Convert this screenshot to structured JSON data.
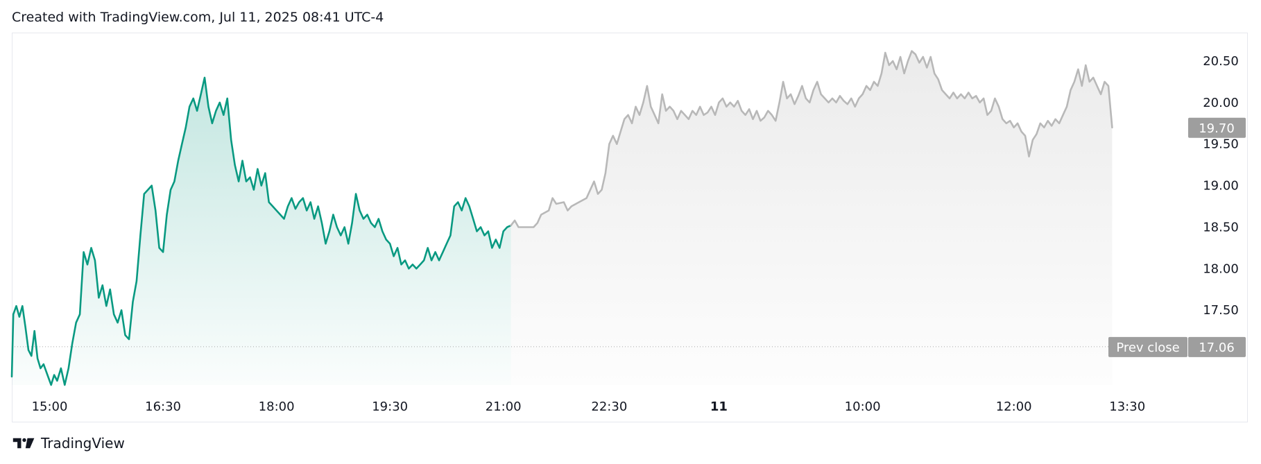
{
  "header": {
    "text": "Created with TradingView.com, Jul 11, 2025 08:41 UTC-4"
  },
  "footer": {
    "brand": "TradingView",
    "logo_icon": "tradingview-logo-icon"
  },
  "colors": {
    "session_line": "#089981",
    "extended_line": "#b8b8b8",
    "session_fill": "#089981",
    "extended_fill": "#c8c8c8",
    "label_bg": "#9e9e9e",
    "label_text": "#ffffff"
  },
  "chart_data": {
    "type": "area",
    "x_ticks": [
      {
        "label": "15:00",
        "t": 0.5,
        "bold": false
      },
      {
        "label": "16:30",
        "t": 2.0,
        "bold": false
      },
      {
        "label": "18:00",
        "t": 3.5,
        "bold": false
      },
      {
        "label": "19:30",
        "t": 5.0,
        "bold": false
      },
      {
        "label": "21:00",
        "t": 6.5,
        "bold": false
      },
      {
        "label": "22:30",
        "t": 7.9,
        "bold": false
      },
      {
        "label": "11",
        "t": 9.35,
        "bold": true
      },
      {
        "label": "10:00",
        "t": 11.25,
        "bold": false
      },
      {
        "label": "12:00",
        "t": 13.25,
        "bold": false
      },
      {
        "label": "13:30",
        "t": 14.75,
        "bold": false
      }
    ],
    "y_ticks": [
      "20.50",
      "20.00",
      "19.50",
      "19.00",
      "18.50",
      "18.00",
      "17.50"
    ],
    "ylim": [
      16.6,
      20.65
    ],
    "xlim": [
      0,
      15.5
    ],
    "grid": false,
    "prev_close": {
      "label": "Prev close",
      "value": 17.06,
      "value_label": "17.06"
    },
    "last_price": {
      "value": 19.7,
      "value_label": "19.70"
    },
    "series": [
      {
        "segment": "regular",
        "points": [
          [
            0.0,
            16.7
          ],
          [
            0.02,
            17.45
          ],
          [
            0.06,
            17.55
          ],
          [
            0.1,
            17.42
          ],
          [
            0.14,
            17.55
          ],
          [
            0.18,
            17.3
          ],
          [
            0.22,
            17.02
          ],
          [
            0.26,
            16.95
          ],
          [
            0.3,
            17.25
          ],
          [
            0.34,
            16.92
          ],
          [
            0.38,
            16.8
          ],
          [
            0.42,
            16.85
          ],
          [
            0.48,
            16.7
          ],
          [
            0.52,
            16.6
          ],
          [
            0.56,
            16.72
          ],
          [
            0.6,
            16.65
          ],
          [
            0.65,
            16.8
          ],
          [
            0.7,
            16.6
          ],
          [
            0.75,
            16.8
          ],
          [
            0.8,
            17.1
          ],
          [
            0.85,
            17.35
          ],
          [
            0.9,
            17.45
          ],
          [
            0.95,
            18.2
          ],
          [
            1.0,
            18.05
          ],
          [
            1.05,
            18.25
          ],
          [
            1.1,
            18.1
          ],
          [
            1.15,
            17.65
          ],
          [
            1.2,
            17.8
          ],
          [
            1.25,
            17.55
          ],
          [
            1.3,
            17.75
          ],
          [
            1.35,
            17.45
          ],
          [
            1.4,
            17.35
          ],
          [
            1.45,
            17.5
          ],
          [
            1.5,
            17.2
          ],
          [
            1.55,
            17.15
          ],
          [
            1.6,
            17.6
          ],
          [
            1.65,
            17.85
          ],
          [
            1.7,
            18.4
          ],
          [
            1.75,
            18.9
          ],
          [
            1.8,
            18.95
          ],
          [
            1.85,
            19.0
          ],
          [
            1.9,
            18.7
          ],
          [
            1.95,
            18.25
          ],
          [
            2.0,
            18.2
          ],
          [
            2.05,
            18.65
          ],
          [
            2.1,
            18.95
          ],
          [
            2.15,
            19.05
          ],
          [
            2.2,
            19.3
          ],
          [
            2.25,
            19.5
          ],
          [
            2.3,
            19.7
          ],
          [
            2.35,
            19.95
          ],
          [
            2.4,
            20.05
          ],
          [
            2.45,
            19.9
          ],
          [
            2.5,
            20.1
          ],
          [
            2.55,
            20.3
          ],
          [
            2.6,
            19.95
          ],
          [
            2.65,
            19.75
          ],
          [
            2.7,
            19.9
          ],
          [
            2.75,
            20.0
          ],
          [
            2.8,
            19.85
          ],
          [
            2.85,
            20.05
          ],
          [
            2.9,
            19.55
          ],
          [
            2.95,
            19.25
          ],
          [
            3.0,
            19.05
          ],
          [
            3.05,
            19.3
          ],
          [
            3.1,
            19.05
          ],
          [
            3.15,
            19.1
          ],
          [
            3.2,
            18.95
          ],
          [
            3.25,
            19.2
          ],
          [
            3.3,
            19.0
          ],
          [
            3.35,
            19.15
          ],
          [
            3.4,
            18.8
          ],
          [
            3.45,
            18.75
          ],
          [
            3.5,
            18.7
          ],
          [
            3.55,
            18.65
          ],
          [
            3.6,
            18.6
          ],
          [
            3.65,
            18.75
          ],
          [
            3.7,
            18.85
          ],
          [
            3.75,
            18.72
          ],
          [
            3.8,
            18.8
          ],
          [
            3.85,
            18.85
          ],
          [
            3.9,
            18.7
          ],
          [
            3.95,
            18.8
          ],
          [
            4.0,
            18.6
          ],
          [
            4.05,
            18.75
          ],
          [
            4.1,
            18.55
          ],
          [
            4.15,
            18.3
          ],
          [
            4.2,
            18.45
          ],
          [
            4.25,
            18.65
          ],
          [
            4.3,
            18.5
          ],
          [
            4.35,
            18.4
          ],
          [
            4.4,
            18.5
          ],
          [
            4.45,
            18.3
          ],
          [
            4.5,
            18.55
          ],
          [
            4.55,
            18.9
          ],
          [
            4.6,
            18.7
          ],
          [
            4.65,
            18.6
          ],
          [
            4.7,
            18.65
          ],
          [
            4.75,
            18.55
          ],
          [
            4.8,
            18.5
          ],
          [
            4.85,
            18.6
          ],
          [
            4.9,
            18.45
          ],
          [
            4.95,
            18.35
          ],
          [
            5.0,
            18.3
          ],
          [
            5.05,
            18.15
          ],
          [
            5.1,
            18.25
          ],
          [
            5.15,
            18.05
          ],
          [
            5.2,
            18.1
          ],
          [
            5.25,
            18.0
          ],
          [
            5.3,
            18.05
          ],
          [
            5.35,
            18.0
          ],
          [
            5.4,
            18.05
          ],
          [
            5.45,
            18.1
          ],
          [
            5.5,
            18.25
          ],
          [
            5.55,
            18.1
          ],
          [
            5.6,
            18.2
          ],
          [
            5.65,
            18.1
          ],
          [
            5.7,
            18.2
          ],
          [
            5.75,
            18.3
          ],
          [
            5.8,
            18.4
          ],
          [
            5.85,
            18.75
          ],
          [
            5.9,
            18.8
          ],
          [
            5.95,
            18.7
          ],
          [
            6.0,
            18.85
          ],
          [
            6.05,
            18.75
          ],
          [
            6.1,
            18.6
          ],
          [
            6.15,
            18.45
          ],
          [
            6.2,
            18.5
          ],
          [
            6.25,
            18.4
          ],
          [
            6.3,
            18.45
          ],
          [
            6.35,
            18.25
          ],
          [
            6.4,
            18.35
          ],
          [
            6.45,
            18.25
          ],
          [
            6.5,
            18.45
          ],
          [
            6.55,
            18.5
          ],
          [
            6.6,
            18.52
          ]
        ]
      },
      {
        "segment": "extended",
        "points": [
          [
            6.6,
            18.52
          ],
          [
            6.65,
            18.58
          ],
          [
            6.7,
            18.5
          ],
          [
            6.8,
            18.5
          ],
          [
            6.9,
            18.5
          ],
          [
            6.95,
            18.55
          ],
          [
            7.0,
            18.65
          ],
          [
            7.1,
            18.7
          ],
          [
            7.15,
            18.85
          ],
          [
            7.2,
            18.78
          ],
          [
            7.3,
            18.8
          ],
          [
            7.35,
            18.7
          ],
          [
            7.4,
            18.75
          ],
          [
            7.5,
            18.8
          ],
          [
            7.6,
            18.85
          ],
          [
            7.7,
            19.05
          ],
          [
            7.75,
            18.9
          ],
          [
            7.8,
            18.95
          ],
          [
            7.85,
            19.15
          ],
          [
            7.9,
            19.5
          ],
          [
            7.95,
            19.6
          ],
          [
            8.0,
            19.5
          ],
          [
            8.05,
            19.65
          ],
          [
            8.1,
            19.8
          ],
          [
            8.15,
            19.85
          ],
          [
            8.2,
            19.75
          ],
          [
            8.25,
            19.95
          ],
          [
            8.3,
            19.85
          ],
          [
            8.35,
            20.0
          ],
          [
            8.4,
            20.2
          ],
          [
            8.45,
            19.95
          ],
          [
            8.5,
            19.85
          ],
          [
            8.55,
            19.75
          ],
          [
            8.6,
            20.1
          ],
          [
            8.65,
            19.9
          ],
          [
            8.7,
            19.95
          ],
          [
            8.75,
            19.9
          ],
          [
            8.8,
            19.8
          ],
          [
            8.85,
            19.9
          ],
          [
            8.9,
            19.85
          ],
          [
            8.95,
            19.8
          ],
          [
            9.0,
            19.9
          ],
          [
            9.05,
            19.85
          ],
          [
            9.1,
            19.95
          ],
          [
            9.15,
            19.85
          ],
          [
            9.2,
            19.88
          ],
          [
            9.25,
            19.95
          ],
          [
            9.3,
            19.85
          ],
          [
            9.35,
            20.0
          ],
          [
            9.4,
            20.05
          ],
          [
            9.45,
            19.95
          ],
          [
            9.5,
            20.0
          ],
          [
            9.55,
            19.95
          ],
          [
            9.6,
            20.02
          ],
          [
            9.65,
            19.9
          ],
          [
            9.7,
            19.85
          ],
          [
            9.75,
            19.92
          ],
          [
            9.8,
            19.8
          ],
          [
            9.85,
            19.9
          ],
          [
            9.9,
            19.78
          ],
          [
            9.95,
            19.82
          ],
          [
            10.0,
            19.9
          ],
          [
            10.05,
            19.85
          ],
          [
            10.1,
            19.78
          ],
          [
            10.15,
            20.0
          ],
          [
            10.2,
            20.25
          ],
          [
            10.25,
            20.05
          ],
          [
            10.3,
            20.1
          ],
          [
            10.35,
            19.98
          ],
          [
            10.4,
            20.08
          ],
          [
            10.45,
            20.2
          ],
          [
            10.5,
            20.05
          ],
          [
            10.55,
            20.0
          ],
          [
            10.6,
            20.15
          ],
          [
            10.65,
            20.25
          ],
          [
            10.7,
            20.1
          ],
          [
            10.75,
            20.05
          ],
          [
            10.8,
            20.0
          ],
          [
            10.85,
            20.05
          ],
          [
            10.9,
            20.0
          ],
          [
            10.95,
            20.08
          ],
          [
            11.0,
            20.02
          ],
          [
            11.05,
            19.98
          ],
          [
            11.1,
            20.05
          ],
          [
            11.15,
            19.95
          ],
          [
            11.2,
            20.05
          ],
          [
            11.25,
            20.1
          ],
          [
            11.3,
            20.2
          ],
          [
            11.35,
            20.15
          ],
          [
            11.4,
            20.25
          ],
          [
            11.45,
            20.2
          ],
          [
            11.5,
            20.35
          ],
          [
            11.55,
            20.6
          ],
          [
            11.6,
            20.45
          ],
          [
            11.65,
            20.5
          ],
          [
            11.7,
            20.4
          ],
          [
            11.75,
            20.55
          ],
          [
            11.8,
            20.35
          ],
          [
            11.85,
            20.5
          ],
          [
            11.9,
            20.62
          ],
          [
            11.95,
            20.58
          ],
          [
            12.0,
            20.48
          ],
          [
            12.05,
            20.55
          ],
          [
            12.1,
            20.42
          ],
          [
            12.15,
            20.55
          ],
          [
            12.2,
            20.35
          ],
          [
            12.25,
            20.28
          ],
          [
            12.3,
            20.15
          ],
          [
            12.35,
            20.1
          ],
          [
            12.4,
            20.05
          ],
          [
            12.45,
            20.12
          ],
          [
            12.5,
            20.05
          ],
          [
            12.55,
            20.1
          ],
          [
            12.6,
            20.05
          ],
          [
            12.65,
            20.12
          ],
          [
            12.7,
            20.05
          ],
          [
            12.75,
            20.08
          ],
          [
            12.8,
            20.0
          ],
          [
            12.85,
            20.05
          ],
          [
            12.9,
            19.85
          ],
          [
            12.95,
            19.9
          ],
          [
            13.0,
            20.05
          ],
          [
            13.05,
            19.95
          ],
          [
            13.1,
            19.8
          ],
          [
            13.15,
            19.75
          ],
          [
            13.2,
            19.78
          ],
          [
            13.25,
            19.7
          ],
          [
            13.3,
            19.75
          ],
          [
            13.35,
            19.65
          ],
          [
            13.4,
            19.6
          ],
          [
            13.45,
            19.35
          ],
          [
            13.5,
            19.55
          ],
          [
            13.55,
            19.62
          ],
          [
            13.6,
            19.75
          ],
          [
            13.65,
            19.7
          ],
          [
            13.7,
            19.78
          ],
          [
            13.75,
            19.72
          ],
          [
            13.8,
            19.8
          ],
          [
            13.85,
            19.75
          ],
          [
            13.9,
            19.85
          ],
          [
            13.95,
            19.95
          ],
          [
            14.0,
            20.15
          ],
          [
            14.05,
            20.25
          ],
          [
            14.1,
            20.4
          ],
          [
            14.15,
            20.2
          ],
          [
            14.2,
            20.45
          ],
          [
            14.25,
            20.25
          ],
          [
            14.3,
            20.3
          ],
          [
            14.35,
            20.2
          ],
          [
            14.4,
            20.1
          ],
          [
            14.45,
            20.25
          ],
          [
            14.5,
            20.2
          ],
          [
            14.55,
            19.7
          ]
        ]
      }
    ]
  }
}
